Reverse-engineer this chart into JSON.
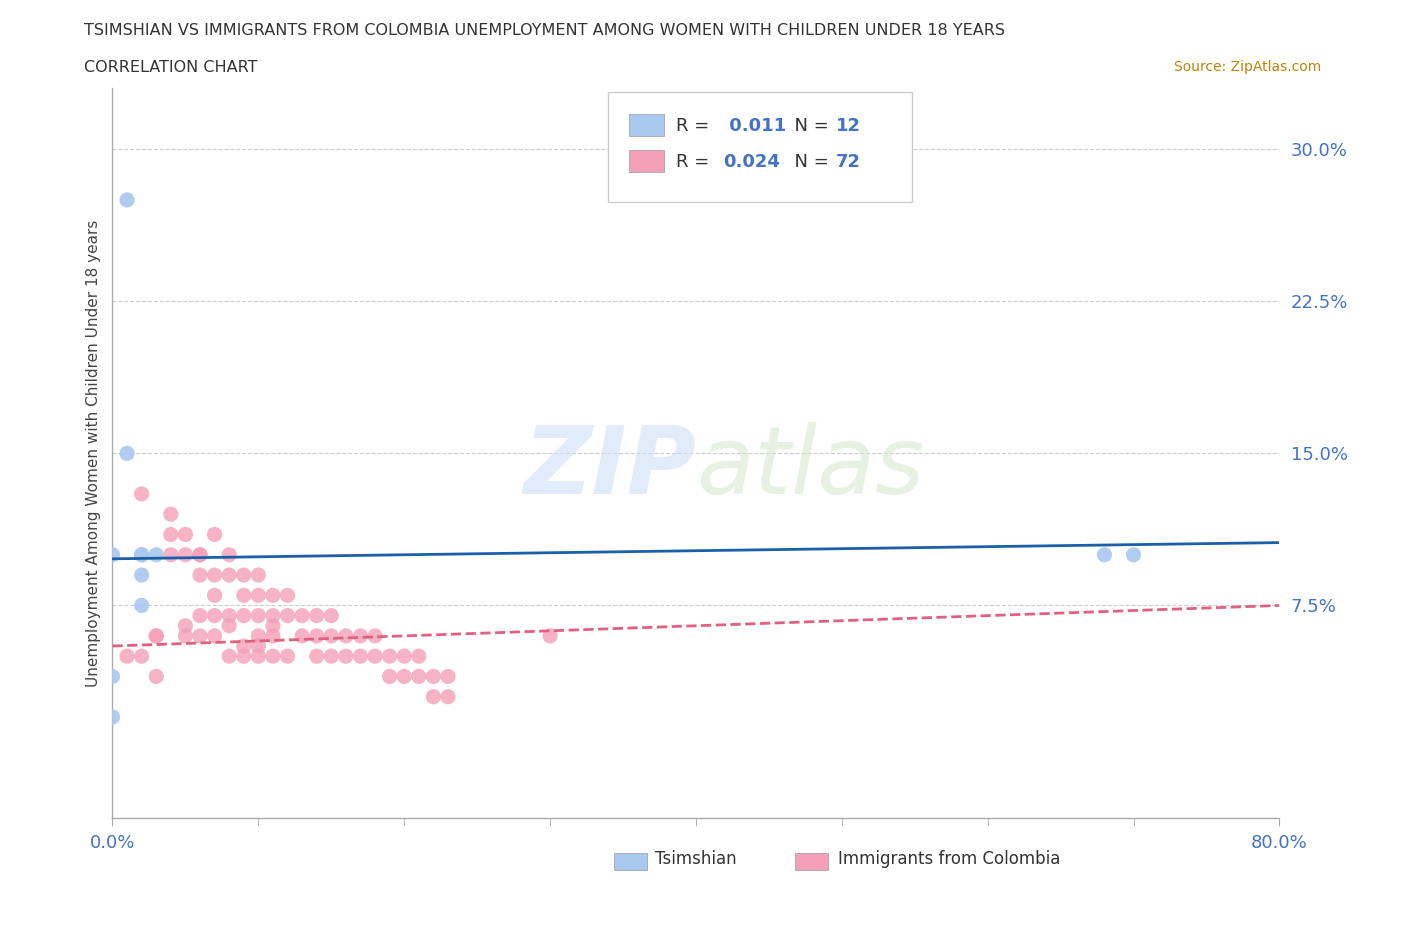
{
  "title": "TSIMSHIAN VS IMMIGRANTS FROM COLOMBIA UNEMPLOYMENT AMONG WOMEN WITH CHILDREN UNDER 18 YEARS",
  "subtitle": "CORRELATION CHART",
  "source": "Source: ZipAtlas.com",
  "watermark": "ZIPatlas",
  "ylabel": "Unemployment Among Women with Children Under 18 years",
  "xlim": [
    0,
    0.8
  ],
  "ylim": [
    -0.03,
    0.33
  ],
  "background_color": "#ffffff",
  "grid_color": "#cccccc",
  "tsimshian_color": "#a8c8f0",
  "colombia_color": "#f4a0b8",
  "tsimshian_R": 0.011,
  "tsimshian_N": 12,
  "colombia_R": 0.024,
  "colombia_N": 72,
  "tsimshian_line_color": "#1a5fa8",
  "colombia_line_color": "#e06080",
  "tsimshian_points_x": [
    0.01,
    0.01,
    0.0,
    0.02,
    0.02,
    0.02,
    0.02,
    0.03,
    0.68,
    0.7,
    0.0,
    0.0
  ],
  "tsimshian_points_y": [
    0.275,
    0.15,
    0.1,
    0.1,
    0.1,
    0.09,
    0.075,
    0.1,
    0.1,
    0.1,
    0.04,
    0.02
  ],
  "colombia_points_x": [
    0.01,
    0.02,
    0.03,
    0.04,
    0.04,
    0.05,
    0.05,
    0.05,
    0.06,
    0.06,
    0.06,
    0.06,
    0.07,
    0.07,
    0.07,
    0.07,
    0.08,
    0.08,
    0.08,
    0.08,
    0.09,
    0.09,
    0.09,
    0.09,
    0.1,
    0.1,
    0.1,
    0.1,
    0.1,
    0.11,
    0.11,
    0.11,
    0.11,
    0.12,
    0.12,
    0.12,
    0.13,
    0.13,
    0.14,
    0.14,
    0.14,
    0.15,
    0.15,
    0.15,
    0.16,
    0.16,
    0.17,
    0.17,
    0.18,
    0.18,
    0.19,
    0.19,
    0.2,
    0.2,
    0.21,
    0.21,
    0.22,
    0.22,
    0.23,
    0.23,
    0.02,
    0.03,
    0.03,
    0.04,
    0.05,
    0.06,
    0.07,
    0.08,
    0.09,
    0.1,
    0.11,
    0.3
  ],
  "colombia_points_y": [
    0.05,
    0.13,
    0.06,
    0.12,
    0.1,
    0.11,
    0.1,
    0.06,
    0.1,
    0.09,
    0.07,
    0.06,
    0.11,
    0.09,
    0.08,
    0.06,
    0.1,
    0.09,
    0.07,
    0.05,
    0.09,
    0.08,
    0.07,
    0.05,
    0.09,
    0.08,
    0.07,
    0.06,
    0.05,
    0.08,
    0.07,
    0.06,
    0.05,
    0.08,
    0.07,
    0.05,
    0.07,
    0.06,
    0.07,
    0.06,
    0.05,
    0.07,
    0.06,
    0.05,
    0.06,
    0.05,
    0.06,
    0.05,
    0.06,
    0.05,
    0.05,
    0.04,
    0.05,
    0.04,
    0.05,
    0.04,
    0.04,
    0.03,
    0.04,
    0.03,
    0.05,
    0.06,
    0.04,
    0.11,
    0.065,
    0.1,
    0.07,
    0.065,
    0.055,
    0.055,
    0.065,
    0.06
  ]
}
